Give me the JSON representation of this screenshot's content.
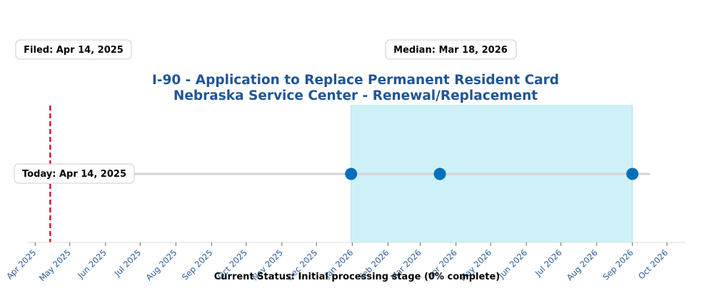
{
  "chart_data": {
    "type": "timeline",
    "title_line1": "I-90 - Application to Replace Permanent Resident Card",
    "title_line2": "Nebraska Service Center - Renewal/Replacement",
    "filed_label": "Filed: Apr 14, 2025",
    "median_label": "Median: Mar 18, 2026",
    "today_label": "Today: Apr 14, 2025",
    "status_text": "Current Status: Initial processing stage (0% complete)",
    "today_date": "2025-04-14",
    "range_start": "2025-12-31",
    "range_end": "2026-09-01",
    "milestones": [
      "2025-12-31",
      "2026-03-18",
      "2026-09-01"
    ],
    "x_range": [
      "2025-03-25",
      "2026-10-17"
    ],
    "x_ticks": [
      "Apr 2025",
      "May 2025",
      "Jun 2025",
      "Jul 2025",
      "Aug 2025",
      "Sep 2025",
      "Oct 2025",
      "Nov 2025",
      "Dec 2025",
      "Jan 2026",
      "Feb 2026",
      "Mar 2026",
      "Apr 2026",
      "May 2026",
      "Jun 2026",
      "Jul 2026",
      "Aug 2026",
      "Sep 2026",
      "Oct 2026"
    ],
    "colors": {
      "title": "#1f5596",
      "tick_text": "#2a5a9a",
      "range_fill": "#cef1f8",
      "range_edge": "#a9e4f2",
      "marker": "#0070bb",
      "today_line": "#dc143c",
      "timeline": "#d3d3d3"
    }
  }
}
